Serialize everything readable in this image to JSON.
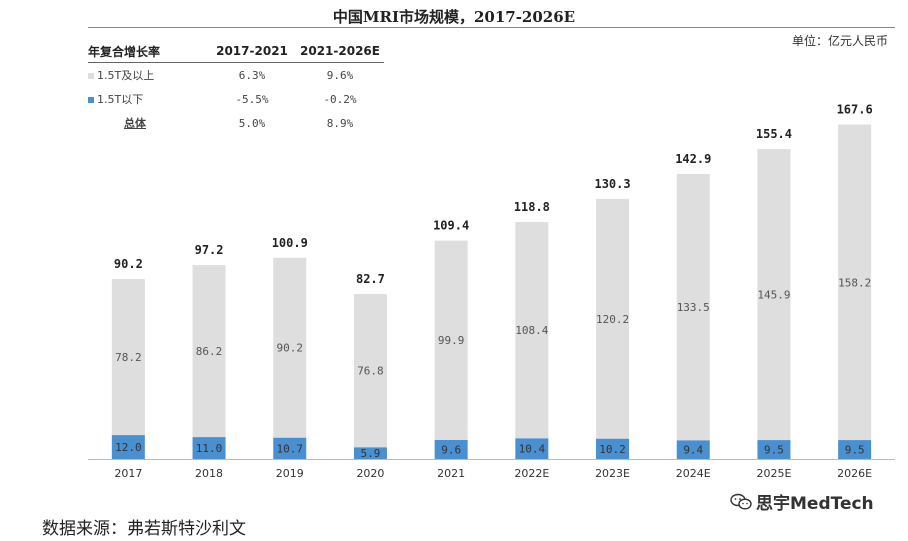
{
  "chart_data": {
    "type": "bar",
    "stacked": true,
    "title": "中国MRI市场规模，2017-2026E",
    "unit_label": "单位：亿元人民币",
    "categories": [
      "2017",
      "2018",
      "2019",
      "2020",
      "2021",
      "2022E",
      "2023E",
      "2024E",
      "2025E",
      "2026E"
    ],
    "series": [
      {
        "name": "1.5T以下",
        "color": "#4a8fd0",
        "values": [
          12.0,
          11.0,
          10.7,
          5.9,
          9.6,
          10.4,
          10.2,
          9.4,
          9.5,
          9.5
        ]
      },
      {
        "name": "1.5T及以上",
        "color": "#dedede",
        "values": [
          78.2,
          86.2,
          90.2,
          76.8,
          99.9,
          108.4,
          120.2,
          133.5,
          145.9,
          158.2
        ]
      }
    ],
    "totals": [
      90.2,
      97.2,
      100.9,
      82.7,
      109.4,
      118.8,
      130.3,
      142.9,
      155.4,
      167.6
    ],
    "ylim": [
      0,
      180
    ],
    "grid": false,
    "value_format": {
      "below": "12.0",
      "above": "78.2",
      "total": "90.2"
    }
  },
  "cagr_table": {
    "header": [
      "年复合增长率",
      "2017-2021",
      "2021-2026E"
    ],
    "rows": [
      {
        "label": "1.5T及以上",
        "v1": "6.3%",
        "v2": "9.6%",
        "swatch": "#dedede"
      },
      {
        "label": "1.5T以下",
        "v1": "-5.5%",
        "v2": "-0.2%",
        "swatch": "#4a8fd0"
      },
      {
        "label": "总体",
        "v1": "5.0%",
        "v2": "8.9%",
        "swatch": ""
      }
    ]
  },
  "source": "数据来源：弗若斯特沙利文",
  "watermark": "思宇MedTech"
}
